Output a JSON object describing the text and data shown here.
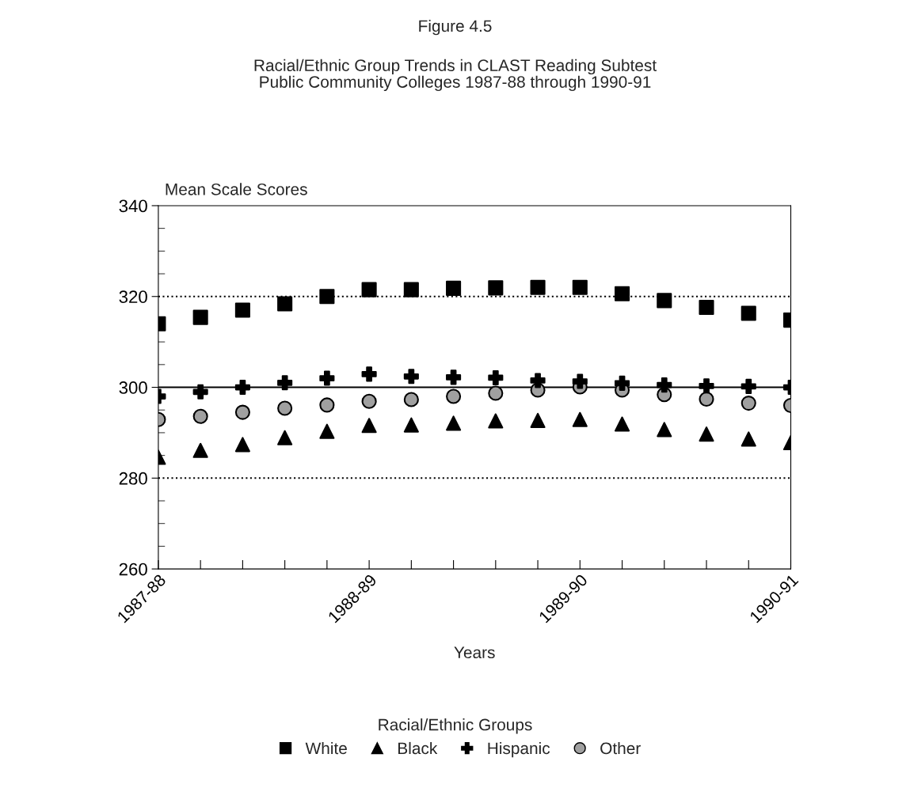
{
  "chart_data": {
    "type": "scatter",
    "title": "Figure 4.5",
    "subtitle": "Racial/Ethnic Group Trends in CLAST Reading Subtest\nPublic Community Colleges 1987-88 through 1990-91",
    "xlabel": "Years",
    "ylabel": "Mean Scale Scores",
    "legend_title": "Racial/Ethnic Groups",
    "categories": [
      "1987-88",
      null,
      null,
      null,
      null,
      "1988-89",
      null,
      null,
      null,
      null,
      "1989-90",
      null,
      null,
      null,
      null,
      "1990-91"
    ],
    "series": [
      {
        "name": "White",
        "color": "#000000",
        "marker": "square",
        "values": [
          314,
          315.4,
          317,
          318.4,
          320,
          321.5,
          321.5,
          321.8,
          321.9,
          322,
          322,
          320.6,
          319.1,
          317.6,
          316.3,
          314.8
        ]
      },
      {
        "name": "Black",
        "color": "#000000",
        "marker": "triangle",
        "values": [
          284.6,
          286.1,
          287.4,
          288.9,
          290.3,
          291.6,
          291.7,
          292.1,
          292.6,
          292.7,
          292.9,
          291.9,
          290.7,
          289.7,
          288.6,
          287.8
        ]
      },
      {
        "name": "Hispanic",
        "color": "#000000",
        "marker": "cross",
        "values": [
          298,
          299,
          300,
          301,
          302,
          302.9,
          302.4,
          302.2,
          302.1,
          301.5,
          301.3,
          300.9,
          300.5,
          300.3,
          300.2,
          300
        ]
      },
      {
        "name": "Other",
        "color": "#a0a0a0",
        "marker": "circle",
        "values": [
          292.9,
          293.6,
          294.5,
          295.4,
          296.1,
          296.9,
          297.3,
          298,
          298.7,
          299.4,
          300.1,
          299.4,
          298.4,
          297.4,
          296.5,
          296
        ]
      }
    ],
    "ylim": [
      260,
      340
    ],
    "yticks": [
      260,
      280,
      300,
      320,
      340
    ],
    "ref_lines": [
      {
        "axis": "y",
        "value": 320,
        "color": "#000000",
        "line_style": "dotted"
      },
      {
        "axis": "y",
        "value": 300,
        "color": "#000000",
        "line_style": "solid"
      },
      {
        "axis": "y",
        "value": 280,
        "color": "#000000",
        "line_style": "dotted"
      }
    ],
    "grid": false,
    "legend": "bottom"
  }
}
